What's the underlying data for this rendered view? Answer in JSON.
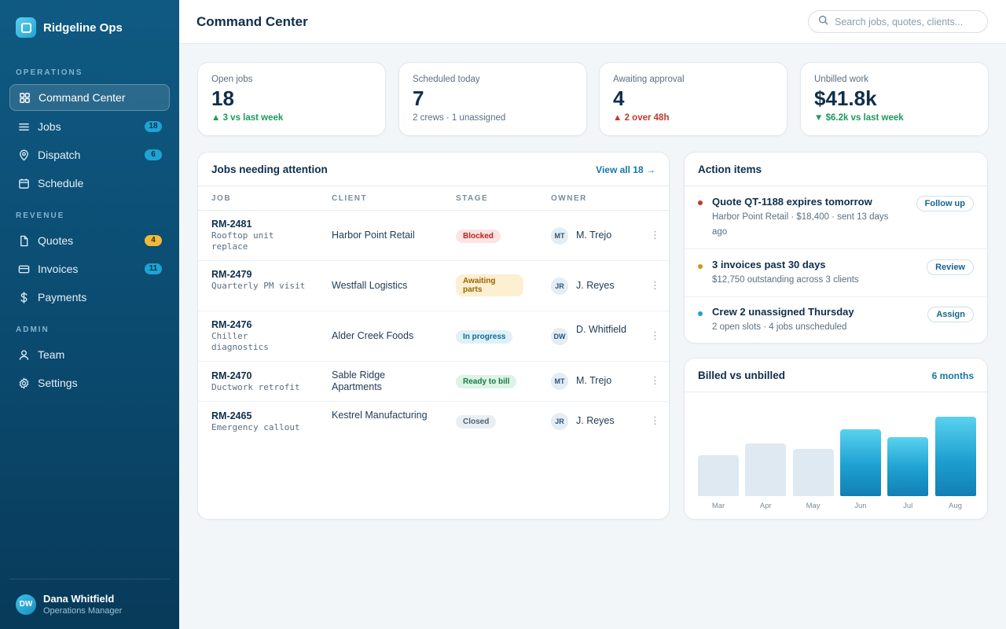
{
  "brand": {
    "name": "Ridgeline Ops"
  },
  "nav": {
    "sections": {
      "operations": "OPERATIONS",
      "revenue": "REVENUE",
      "admin": "ADMIN"
    },
    "items": [
      {
        "label": "Command Center",
        "icon": "grid-icon",
        "active": true
      },
      {
        "label": "Jobs",
        "icon": "list-icon",
        "badge": "18"
      },
      {
        "label": "Dispatch",
        "icon": "map-pin-icon",
        "badge": "6"
      },
      {
        "label": "Schedule",
        "icon": "calendar-icon"
      },
      {
        "label": "Quotes",
        "icon": "document-icon",
        "badge": "4"
      },
      {
        "label": "Invoices",
        "icon": "credit-card-icon",
        "badge": "11"
      },
      {
        "label": "Payments",
        "icon": "dollar-icon"
      },
      {
        "label": "Team",
        "icon": "user-icon"
      },
      {
        "label": "Settings",
        "icon": "gear-icon"
      }
    ]
  },
  "user": {
    "initials": "DW",
    "name": "Dana Whitfield",
    "role": "Operations Manager"
  },
  "header": {
    "title": "Command Center",
    "search_placeholder": "Search jobs, quotes, clients..."
  },
  "kpis": [
    {
      "label": "Open jobs",
      "value": "18",
      "sub": "▲ 3 vs last week"
    },
    {
      "label": "Scheduled today",
      "value": "7",
      "sub": "2 crews · 1 unassigned"
    },
    {
      "label": "Awaiting approval",
      "value": "4",
      "sub": "▲ 2 over 48h"
    },
    {
      "label": "Unbilled work",
      "value": "$41.8k",
      "sub": "▼ $6.2k vs last week"
    }
  ],
  "jobs": {
    "title": "Jobs needing attention",
    "view_all": "View all 18 →",
    "columns": [
      "JOB",
      "CLIENT",
      "STAGE",
      "OWNER"
    ],
    "rows": [
      {
        "id": "RM-2481",
        "desc": "Rooftop unit replace",
        "client": "Harbor Point Retail",
        "stage": "Blocked",
        "owner_initials": "MT",
        "owner": "M. Trejo"
      },
      {
        "id": "RM-2479",
        "desc": "Quarterly PM visit",
        "client": "Westfall Logistics",
        "stage": "Awaiting parts",
        "owner_initials": "JR",
        "owner": "J. Reyes"
      },
      {
        "id": "RM-2476",
        "desc": "Chiller diagnostics",
        "client": "Alder Creek Foods",
        "stage": "In progress",
        "owner_initials": "DW",
        "owner": "D. Whitfield"
      },
      {
        "id": "RM-2470",
        "desc": "Ductwork retrofit",
        "client": "Sable Ridge Apartments",
        "stage": "Ready to bill",
        "owner_initials": "MT",
        "owner": "M. Trejo"
      },
      {
        "id": "RM-2465",
        "desc": "Emergency callout",
        "client": "Kestrel Manufacturing",
        "stage": "Closed",
        "owner_initials": "JR",
        "owner": "J. Reyes"
      }
    ],
    "menu_glyph": "⋮"
  },
  "actions": {
    "title": "Action items",
    "items": [
      {
        "title": "Quote QT-1188 expires tomorrow",
        "sub": "Harbor Point Retail · $18,400 · sent 13 days ago",
        "button": "Follow up",
        "color": "#c0392b"
      },
      {
        "title": "3 invoices past 30 days",
        "sub": "$12,750 outstanding across 3 clients",
        "button": "Review",
        "color": "#d39414"
      },
      {
        "title": "Crew 2 unassigned Thursday",
        "sub": "2 open slots · 4 jobs unscheduled",
        "button": "Assign",
        "color": "#1fa3d3"
      }
    ]
  },
  "billing": {
    "title": "Billed vs unbilled",
    "range": "6 months"
  },
  "chart_data": {
    "type": "bar",
    "categories": [
      "Mar",
      "Apr",
      "May",
      "Jun",
      "Jul",
      "Aug"
    ],
    "values": [
      52,
      67,
      60,
      85,
      75,
      101
    ],
    "highlighted": [
      "Jun",
      "Jul",
      "Aug"
    ],
    "ylim": [
      0,
      110
    ],
    "title": "Billed vs unbilled",
    "xlabel": "",
    "ylabel": "",
    "grid": false
  }
}
